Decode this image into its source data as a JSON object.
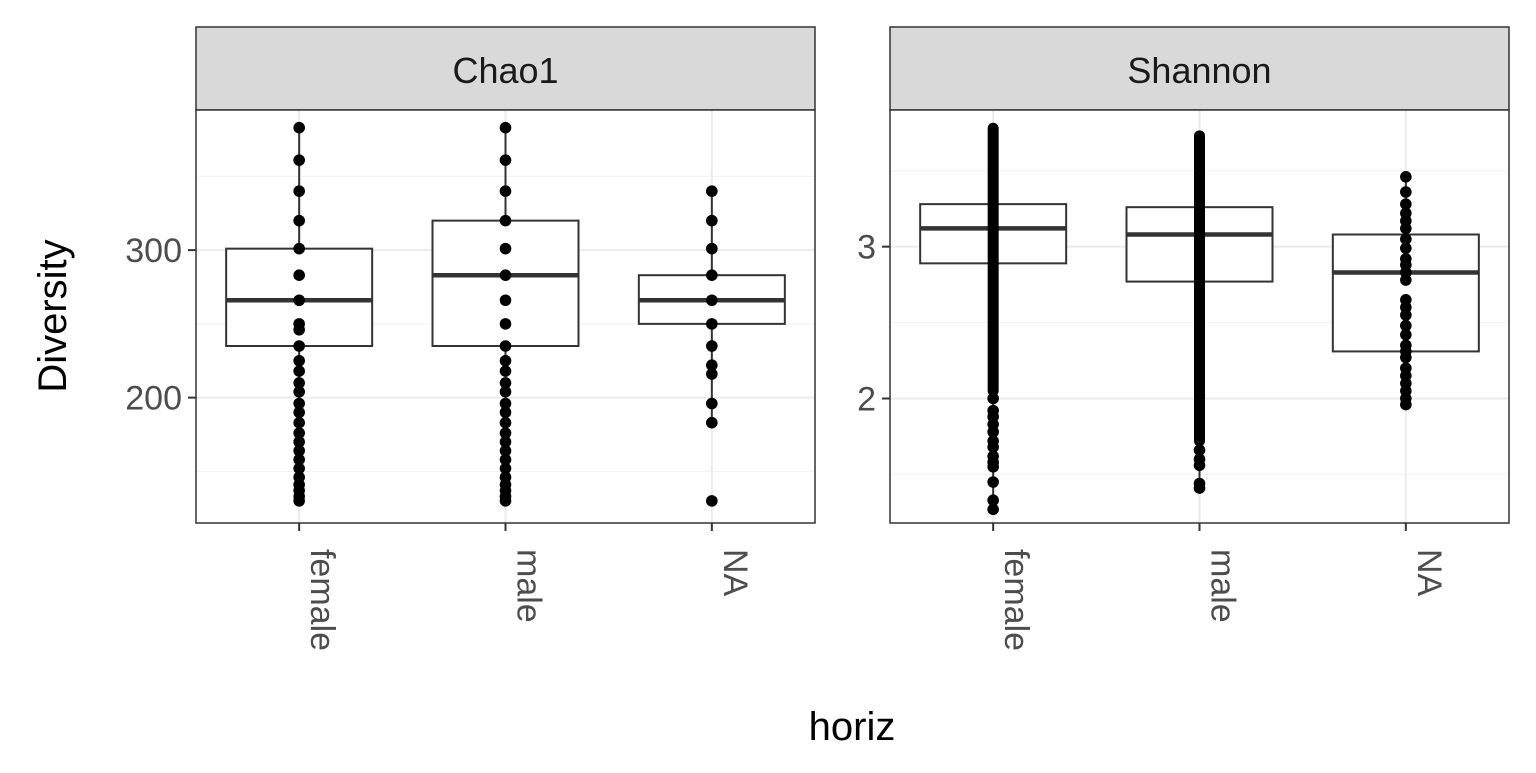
{
  "chart_data": {
    "type": "boxplot",
    "xlabel": "horiz",
    "ylabel": "Diversity",
    "categories": [
      "female",
      "male",
      "NA"
    ],
    "colors": {
      "points": "#000000",
      "strip": "#d9d9d9",
      "grid": "#ebebeb",
      "frame": "#333333",
      "box_line": "#333333"
    },
    "panels": [
      {
        "title": "Chao1",
        "ylim": [
          115,
          395
        ],
        "yticks": [
          200,
          300
        ],
        "ytick_labels": [
          "200",
          "300"
        ],
        "boxes": [
          {
            "category": "female",
            "q1": 235,
            "median": 266,
            "q3": 301,
            "whisker_low": 130,
            "whisker_high": 383,
            "points": [
              383,
              361,
              340,
              320,
              301,
              283,
              266,
              250,
              246,
              235,
              225,
              218,
              210,
              204,
              196,
              190,
              183,
              176,
              170,
              164,
              158,
              152,
              146,
              141,
              137,
              133,
              130
            ]
          },
          {
            "category": "male",
            "q1": 235,
            "median": 283,
            "q3": 320,
            "whisker_low": 130,
            "whisker_high": 383,
            "points": [
              383,
              361,
              340,
              320,
              301,
              283,
              266,
              250,
              235,
              225,
              218,
              210,
              204,
              196,
              190,
              183,
              176,
              170,
              164,
              158,
              152,
              146,
              141,
              137,
              133,
              130
            ]
          },
          {
            "category": "NA",
            "q1": 250,
            "median": 266,
            "q3": 283,
            "whisker_low": 183,
            "whisker_high": 340,
            "points": [
              340,
              320,
              301,
              283,
              266,
              250,
              235,
              222,
              216,
              196,
              183,
              130
            ]
          }
        ]
      },
      {
        "title": "Shannon",
        "ylim": [
          1.18,
          3.9
        ],
        "yticks": [
          2,
          3
        ],
        "ytick_labels": [
          "2",
          "3"
        ],
        "boxes": [
          {
            "category": "female",
            "q1": 2.89,
            "median": 3.12,
            "q3": 3.28,
            "whisker_low": 1.27,
            "whisker_high": 3.78,
            "dense_range": [
              2.05,
              3.78
            ],
            "points": [
              1.27,
              1.33,
              1.45,
              1.55,
              1.58,
              1.62,
              1.68,
              1.72,
              1.78,
              1.83,
              1.88,
              1.92,
              2.0
            ]
          },
          {
            "category": "male",
            "q1": 2.77,
            "median": 3.08,
            "q3": 3.26,
            "whisker_low": 1.41,
            "whisker_high": 3.73,
            "dense_range": [
              1.72,
              3.73
            ],
            "points": [
              1.41,
              1.44,
              1.56,
              1.6,
              1.66
            ]
          },
          {
            "category": "NA",
            "q1": 2.31,
            "median": 2.83,
            "q3": 3.08,
            "whisker_low": 1.96,
            "whisker_high": 3.46,
            "points": [
              3.46,
              3.36,
              3.28,
              3.22,
              3.17,
              3.12,
              3.05,
              2.99,
              2.92,
              2.88,
              2.83,
              2.78,
              2.65,
              2.6,
              2.55,
              2.48,
              2.42,
              2.35,
              2.31,
              2.27,
              2.2,
              2.15,
              2.1,
              2.05,
              2.0,
              1.96
            ]
          }
        ]
      }
    ]
  }
}
